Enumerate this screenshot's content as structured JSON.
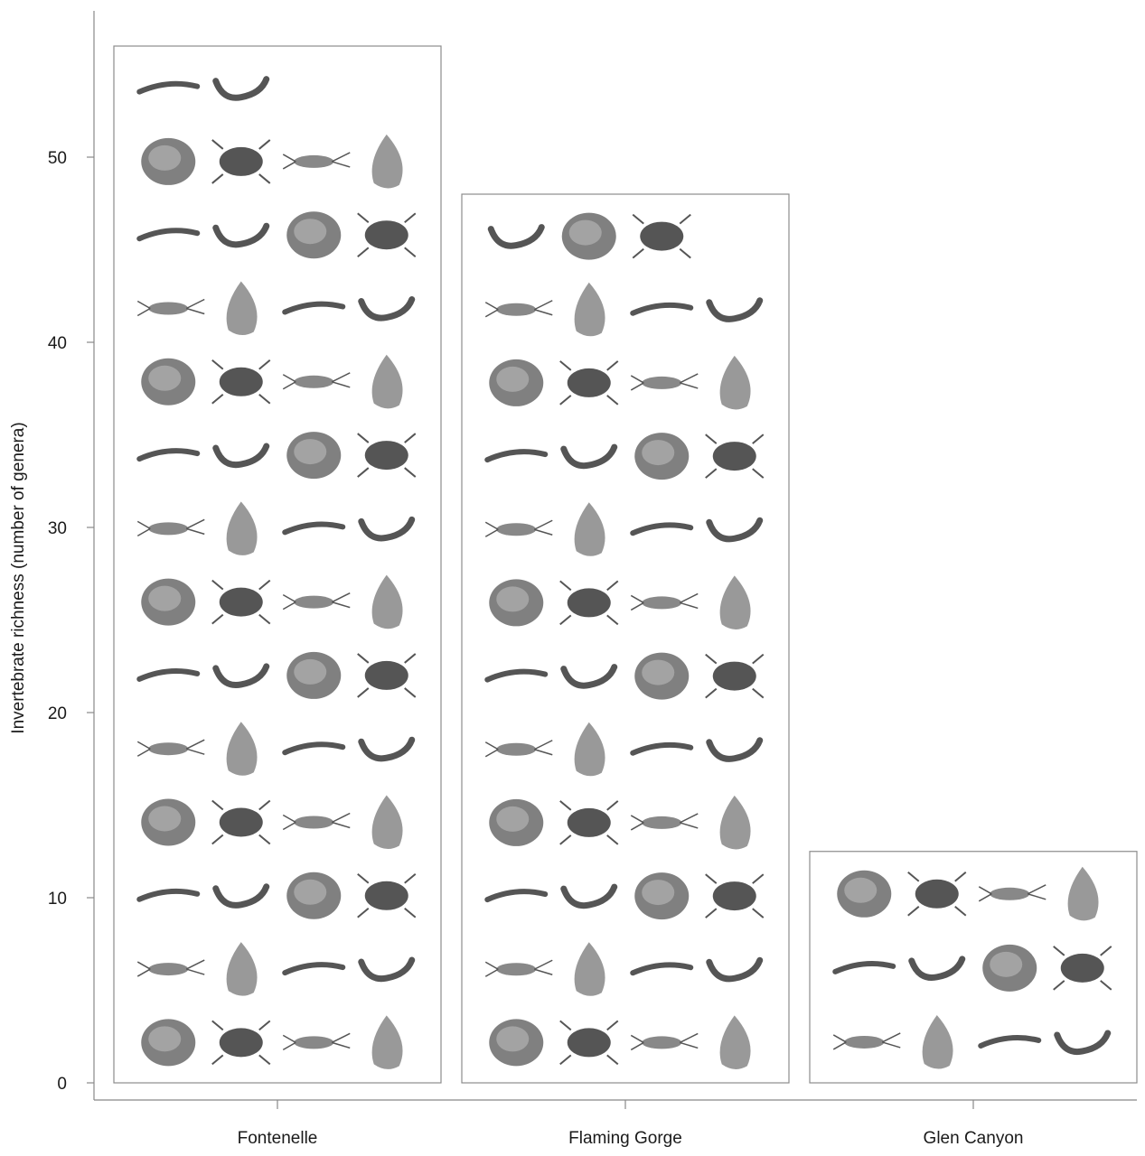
{
  "chart_data": {
    "type": "bar",
    "title": "",
    "xlabel": "",
    "ylabel": "Invertebrate richness (number of genera)",
    "categories": [
      "Fontenelle",
      "Flaming Gorge",
      "Glen Canyon"
    ],
    "values": [
      56,
      48,
      12.5
    ],
    "ylim": [
      0,
      56
    ],
    "yticks": [
      0,
      10,
      20,
      30,
      40,
      50
    ],
    "ytick_labels": [
      "0",
      "10",
      "20",
      "30",
      "40",
      "50"
    ],
    "grid": false,
    "legend": "none",
    "bar_fill": "#ffffff",
    "bar_stroke": "#8c8c8c",
    "icon_color": "#555555",
    "icon_rows": {
      "Fontenelle": [
        2,
        4,
        4,
        4,
        4,
        4,
        4,
        4,
        4,
        4,
        4,
        4,
        4,
        4
      ],
      "Flaming Gorge": [
        3,
        4,
        4,
        4,
        4,
        4,
        4,
        4,
        4,
        4,
        4,
        4
      ],
      "Glen Canyon": [
        4,
        4,
        4
      ]
    }
  }
}
